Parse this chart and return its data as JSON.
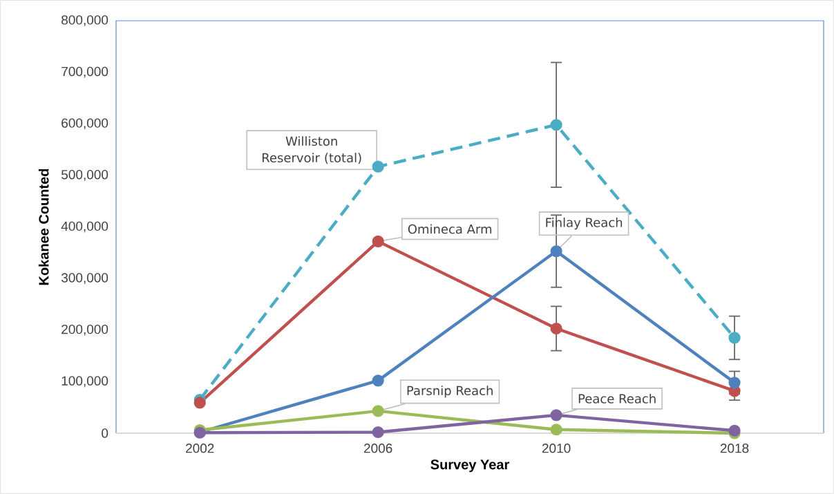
{
  "chart_data": {
    "type": "line",
    "xlabel": "Survey Year",
    "ylabel": "Kokanee Counted",
    "categories": [
      "2002",
      "2006",
      "2010",
      "2018"
    ],
    "series": [
      {
        "name": "Williston Reservoir (total)",
        "color": "#4bacc6",
        "line_style": "dashed",
        "values": [
          65000,
          517000,
          598000,
          185000
        ],
        "errors": [
          null,
          null,
          121000,
          42000
        ]
      },
      {
        "name": "Omineca Arm",
        "color": "#c0504d",
        "values": [
          59000,
          372000,
          203000,
          82000
        ],
        "errors": [
          null,
          null,
          43000,
          18000
        ]
      },
      {
        "name": "Finlay Reach",
        "color": "#4f81bd",
        "values": [
          2000,
          102000,
          353000,
          98000
        ],
        "errors": [
          null,
          null,
          70000,
          22000
        ]
      },
      {
        "name": "Parsnip Reach",
        "color": "#9bbb59",
        "values": [
          6000,
          43000,
          7000,
          0
        ]
      },
      {
        "name": "Peace Reach",
        "color": "#8064a2",
        "values": [
          1000,
          2000,
          35000,
          5000
        ]
      }
    ],
    "ylim": [
      0,
      800000
    ],
    "yticks": [
      0,
      {
        "value": 100000,
        "label": "100,000"
      },
      {
        "value": 200000,
        "label": "200,000"
      },
      {
        "value": 300000,
        "label": "300,000"
      },
      {
        "value": 400000,
        "label": "400,000"
      },
      {
        "value": 500000,
        "label": "500,000"
      },
      {
        "value": 600000,
        "label": "600,000"
      },
      {
        "value": 700000,
        "label": "700,000"
      },
      {
        "value": 800000,
        "label": "800,000"
      }
    ],
    "marker": "circle",
    "line_style": "solid"
  }
}
